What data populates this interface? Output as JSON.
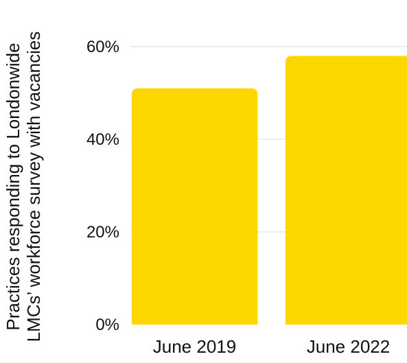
{
  "chart_data": {
    "type": "bar",
    "categories": [
      "June 2019",
      "June 2022"
    ],
    "values": [
      51,
      58
    ],
    "ylabel": [
      "Practices responding to Londonwide",
      "LMCs’  workforce survey with vacancies"
    ],
    "xlabel": "",
    "ylim": [
      0,
      60
    ],
    "yticks": [
      0,
      20,
      40,
      60
    ],
    "yticks_labels": [
      "0%",
      "20%",
      "40%",
      "60%"
    ],
    "grid": true,
    "bar_color": "#FFD700",
    "grid_color": "#d9d9d9"
  }
}
